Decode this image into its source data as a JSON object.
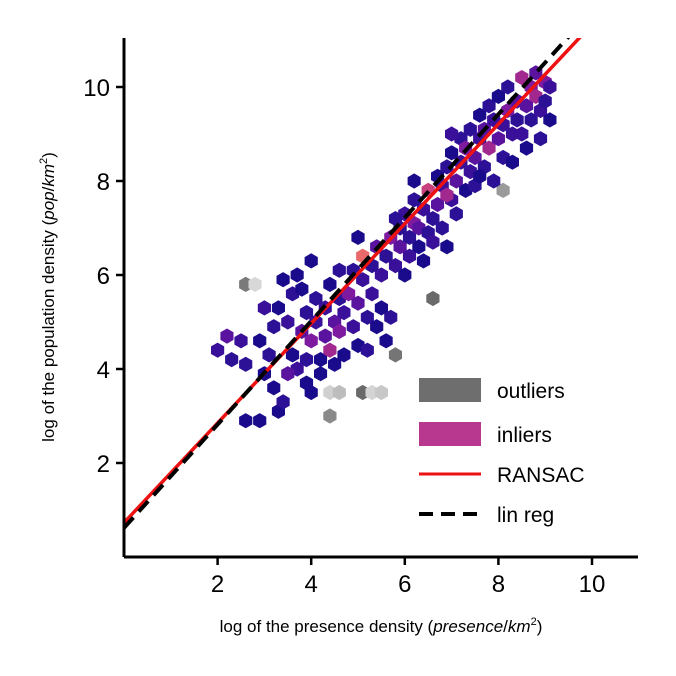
{
  "chart_data": {
    "type": "scatter",
    "subtype": "hexbin",
    "xlabel_parts": [
      "log of the presence density (",
      "presence",
      "/",
      "km",
      "2",
      ")"
    ],
    "ylabel_parts": [
      "log of the population density (",
      "pop",
      "/",
      "km",
      "2",
      ")"
    ],
    "xlim": [
      0,
      11
    ],
    "ylim": [
      0,
      11
    ],
    "xticks": [
      2,
      4,
      6,
      8,
      10
    ],
    "yticks": [
      2,
      4,
      6,
      8,
      10
    ],
    "xtick_labels": [
      "2",
      "4",
      "6",
      "8",
      "10"
    ],
    "ytick_labels": [
      "2",
      "4",
      "6",
      "8",
      "10"
    ],
    "grid": false,
    "legend_position": "lower-right",
    "legend": [
      {
        "label": "outliers",
        "kind": "patch",
        "color": "#6e6e6e"
      },
      {
        "label": "inliers",
        "kind": "patch",
        "color": "#b8388f"
      },
      {
        "label": "RANSAC",
        "kind": "line",
        "color": "#ee1111"
      },
      {
        "label": "lin reg",
        "kind": "dashed-line",
        "color": "#000000"
      }
    ],
    "lines": [
      {
        "name": "RANSAC",
        "slope": 1.06,
        "intercept": 0.73,
        "color": "#ee1111"
      },
      {
        "name": "lin reg",
        "slope": 1.1,
        "intercept": 0.62,
        "color": "#000000"
      }
    ],
    "inlier_colors": [
      "#1a0b8c",
      "#2c1096",
      "#3a0f9a",
      "#5a139f",
      "#7d1aa0",
      "#a0288f",
      "#c8407e",
      "#e86a6a"
    ],
    "inlier_bins": [
      [
        2.0,
        4.4,
        2
      ],
      [
        2.2,
        4.7,
        3
      ],
      [
        2.3,
        4.2,
        1
      ],
      [
        2.5,
        4.6,
        2
      ],
      [
        2.6,
        2.9,
        0
      ],
      [
        2.9,
        2.9,
        0
      ],
      [
        2.6,
        4.1,
        1
      ],
      [
        2.9,
        4.6,
        0
      ],
      [
        3.0,
        3.9,
        0
      ],
      [
        3.1,
        4.3,
        1
      ],
      [
        3.2,
        3.6,
        0
      ],
      [
        3.3,
        3.1,
        0
      ],
      [
        3.4,
        3.3,
        1
      ],
      [
        3.2,
        4.9,
        1
      ],
      [
        3.3,
        5.3,
        0
      ],
      [
        3.5,
        5.0,
        2
      ],
      [
        3.6,
        5.6,
        1
      ],
      [
        3.7,
        6.0,
        0
      ],
      [
        3.8,
        5.7,
        0
      ],
      [
        3.9,
        5.2,
        1
      ],
      [
        3.8,
        4.8,
        3
      ],
      [
        3.6,
        4.3,
        0
      ],
      [
        3.7,
        4.0,
        2
      ],
      [
        3.9,
        4.2,
        1
      ],
      [
        3.9,
        3.7,
        0
      ],
      [
        4.0,
        4.6,
        4
      ],
      [
        4.1,
        5.0,
        2
      ],
      [
        4.1,
        5.5,
        1
      ],
      [
        4.2,
        4.2,
        0
      ],
      [
        4.2,
        3.9,
        0
      ],
      [
        4.3,
        4.7,
        3
      ],
      [
        4.3,
        5.3,
        2
      ],
      [
        4.4,
        5.8,
        0
      ],
      [
        4.4,
        4.4,
        5
      ],
      [
        4.5,
        5.0,
        3
      ],
      [
        4.5,
        4.1,
        0
      ],
      [
        4.6,
        5.5,
        1
      ],
      [
        4.6,
        4.8,
        4
      ],
      [
        4.7,
        5.2,
        2
      ],
      [
        4.7,
        4.3,
        0
      ],
      [
        4.8,
        5.6,
        4
      ],
      [
        4.9,
        4.9,
        2
      ],
      [
        4.9,
        6.1,
        1
      ],
      [
        5.0,
        5.4,
        3
      ],
      [
        5.0,
        4.5,
        0
      ],
      [
        5.1,
        5.9,
        2
      ],
      [
        5.1,
        6.4,
        7
      ],
      [
        5.2,
        5.1,
        1
      ],
      [
        5.3,
        6.2,
        1
      ],
      [
        5.3,
        5.6,
        2
      ],
      [
        5.4,
        6.6,
        3
      ],
      [
        5.4,
        4.9,
        0
      ],
      [
        5.5,
        6.0,
        2
      ],
      [
        5.5,
        5.3,
        0
      ],
      [
        5.6,
        6.4,
        1
      ],
      [
        5.6,
        4.6,
        0
      ],
      [
        5.7,
        5.1,
        1
      ],
      [
        5.7,
        6.8,
        4
      ],
      [
        5.8,
        6.2,
        2
      ],
      [
        5.9,
        7.0,
        1
      ],
      [
        5.9,
        6.6,
        3
      ],
      [
        6.0,
        6.0,
        0
      ],
      [
        6.0,
        7.3,
        2
      ],
      [
        6.1,
        6.8,
        1
      ],
      [
        6.1,
        6.4,
        2
      ],
      [
        6.2,
        7.1,
        4
      ],
      [
        6.2,
        7.6,
        1
      ],
      [
        6.3,
        6.6,
        0
      ],
      [
        6.3,
        7.0,
        3
      ],
      [
        6.4,
        7.4,
        2
      ],
      [
        6.4,
        6.3,
        0
      ],
      [
        6.5,
        6.9,
        1
      ],
      [
        6.5,
        7.8,
        6
      ],
      [
        6.6,
        7.2,
        1
      ],
      [
        6.6,
        6.7,
        2
      ],
      [
        6.7,
        7.5,
        3
      ],
      [
        6.7,
        8.1,
        0
      ],
      [
        6.8,
        7.0,
        1
      ],
      [
        6.8,
        7.9,
        2
      ],
      [
        6.9,
        8.3,
        1
      ],
      [
        6.9,
        6.6,
        0
      ],
      [
        7.0,
        7.6,
        2
      ],
      [
        7.0,
        8.6,
        0
      ],
      [
        7.1,
        8.0,
        3
      ],
      [
        7.1,
        7.3,
        1
      ],
      [
        7.2,
        8.4,
        2
      ],
      [
        7.2,
        8.9,
        1
      ],
      [
        7.3,
        7.8,
        0
      ],
      [
        7.3,
        8.7,
        4
      ],
      [
        7.4,
        8.2,
        2
      ],
      [
        7.4,
        9.1,
        1
      ],
      [
        7.5,
        8.5,
        3
      ],
      [
        7.5,
        7.9,
        1
      ],
      [
        7.6,
        8.9,
        2
      ],
      [
        7.6,
        9.4,
        0
      ],
      [
        7.7,
        8.3,
        1
      ],
      [
        7.7,
        9.1,
        3
      ],
      [
        7.8,
        8.7,
        5
      ],
      [
        7.8,
        9.6,
        1
      ],
      [
        7.9,
        8.0,
        1
      ],
      [
        7.9,
        9.3,
        2
      ],
      [
        8.0,
        8.9,
        3
      ],
      [
        8.0,
        9.8,
        0
      ],
      [
        8.1,
        9.2,
        2
      ],
      [
        8.1,
        8.5,
        1
      ],
      [
        8.2,
        9.5,
        4
      ],
      [
        8.2,
        10.0,
        1
      ],
      [
        8.3,
        9.0,
        2
      ],
      [
        8.3,
        8.4,
        0
      ],
      [
        8.4,
        9.7,
        3
      ],
      [
        8.4,
        9.3,
        1
      ],
      [
        8.5,
        10.2,
        5
      ],
      [
        8.5,
        9.0,
        2
      ],
      [
        8.6,
        9.6,
        3
      ],
      [
        8.6,
        8.7,
        0
      ],
      [
        8.7,
        10.0,
        4
      ],
      [
        8.7,
        9.3,
        1
      ],
      [
        8.8,
        9.8,
        5
      ],
      [
        8.8,
        10.3,
        3
      ],
      [
        8.9,
        9.5,
        2
      ],
      [
        8.9,
        8.9,
        1
      ],
      [
        9.0,
        10.1,
        4
      ],
      [
        9.0,
        9.7,
        1
      ],
      [
        9.1,
        9.3,
        0
      ],
      [
        9.1,
        10.0,
        2
      ],
      [
        7.6,
        8.1,
        0
      ],
      [
        7.0,
        9.0,
        2
      ],
      [
        6.9,
        7.7,
        5
      ],
      [
        6.2,
        8.0,
        0
      ],
      [
        5.8,
        7.2,
        1
      ],
      [
        5.0,
        6.8,
        0
      ],
      [
        4.6,
        6.1,
        1
      ],
      [
        3.4,
        5.9,
        0
      ],
      [
        3.0,
        5.3,
        2
      ],
      [
        4.0,
        6.3,
        0
      ],
      [
        5.2,
        4.4,
        1
      ],
      [
        4.0,
        3.5,
        0
      ],
      [
        3.5,
        3.9,
        3
      ]
    ],
    "outlier_bins": [
      [
        2.6,
        5.8,
        "#7a7a7a"
      ],
      [
        2.8,
        5.8,
        "#d8d8d8"
      ],
      [
        6.6,
        5.5,
        "#6a6a6a"
      ],
      [
        5.8,
        4.3,
        "#757575"
      ],
      [
        4.4,
        3.5,
        "#d0d0d0"
      ],
      [
        4.6,
        3.5,
        "#bdbdbd"
      ],
      [
        5.1,
        3.5,
        "#6a6a6a"
      ],
      [
        5.3,
        3.5,
        "#d4d4d4"
      ],
      [
        5.5,
        3.5,
        "#c8c8c8"
      ],
      [
        4.4,
        3.0,
        "#8a8a8a"
      ],
      [
        8.1,
        7.8,
        "#9a9a9a"
      ]
    ]
  }
}
